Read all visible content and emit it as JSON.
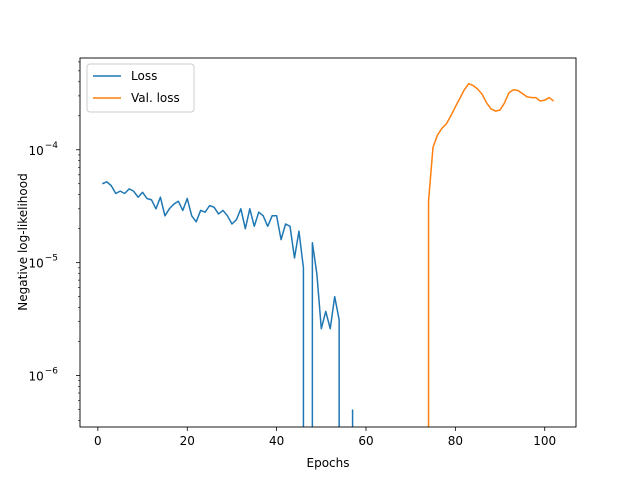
{
  "chart_data": {
    "type": "line",
    "xlabel": "Epochs",
    "ylabel": "Negative log-likelihood",
    "xlim": [
      -4,
      107
    ],
    "ylim": [
      3.5e-07,
      0.00065
    ],
    "yscale": "log",
    "x_ticks": [
      0,
      20,
      40,
      60,
      80,
      100
    ],
    "y_ticks": [
      {
        "value": 1e-06,
        "mantissa": "10",
        "exponent": "−6"
      },
      {
        "value": 1e-05,
        "mantissa": "10",
        "exponent": "−5"
      },
      {
        "value": 0.0001,
        "mantissa": "10",
        "exponent": "−4"
      }
    ],
    "legend_position": "top-left",
    "grid": false,
    "series": [
      {
        "name": "Loss",
        "color": "#1f77b4",
        "segments": [
          {
            "x": [
              1,
              2,
              3,
              4,
              5,
              6,
              7,
              8,
              9,
              10,
              11,
              12,
              13,
              14,
              15,
              16,
              17,
              18,
              19,
              20,
              21,
              22,
              23,
              24,
              25,
              26,
              27,
              28,
              29,
              30,
              31,
              32,
              33,
              34,
              35,
              36,
              37,
              38,
              39,
              40,
              41,
              42,
              43,
              44,
              45,
              46
            ],
            "y": [
              5e-05,
              5.2e-05,
              4.8e-05,
              4.1e-05,
              4.3e-05,
              4.1e-05,
              4.5e-05,
              4.3e-05,
              3.8e-05,
              4.2e-05,
              3.7e-05,
              3.6e-05,
              3e-05,
              3.8e-05,
              2.6e-05,
              3e-05,
              3.3e-05,
              3.5e-05,
              2.9e-05,
              3.7e-05,
              2.6e-05,
              2.3e-05,
              2.9e-05,
              2.8e-05,
              3.2e-05,
              3.1e-05,
              2.7e-05,
              2.9e-05,
              2.6e-05,
              2.2e-05,
              2.4e-05,
              3e-05,
              2e-05,
              3e-05,
              2.1e-05,
              2.8e-05,
              2.6e-05,
              2.1e-05,
              2.6e-05,
              2.6e-05,
              1.6e-05,
              2.2e-05,
              2.1e-05,
              1.1e-05,
              1.9e-05,
              9e-06
            ],
            "drop_to_floor": true
          },
          {
            "x": [
              48,
              49,
              50,
              51,
              52,
              53,
              54
            ],
            "y": [
              1.5e-05,
              8e-06,
              2.6e-06,
              3.7e-06,
              2.6e-06,
              5e-06,
              3.1e-06
            ],
            "rise_from_floor": true,
            "drop_to_floor": true
          },
          {
            "x": [
              57,
              57
            ],
            "y": [
              5e-07,
              4e-07
            ],
            "drop_to_floor": true
          }
        ]
      },
      {
        "name": "Val. loss",
        "color": "#ff7f0e",
        "segments": [
          {
            "x": [
              74,
              75,
              76,
              77,
              78,
              79,
              80,
              81,
              82,
              83,
              84,
              85,
              86,
              87,
              88,
              89,
              90,
              91,
              92,
              93,
              94,
              95,
              96,
              97,
              98,
              99,
              100,
              101,
              102
            ],
            "y": [
              3.5e-05,
              0.000105,
              0.000135,
              0.000155,
              0.00017,
              0.0002,
              0.00024,
              0.000285,
              0.00034,
              0.000385,
              0.00037,
              0.000345,
              0.00031,
              0.00026,
              0.00023,
              0.00022,
              0.000225,
              0.00026,
              0.00032,
              0.00034,
              0.000335,
              0.000315,
              0.000295,
              0.00029,
              0.00029,
              0.00027,
              0.000275,
              0.00029,
              0.00027
            ],
            "rise_from_floor": true
          }
        ]
      }
    ]
  }
}
